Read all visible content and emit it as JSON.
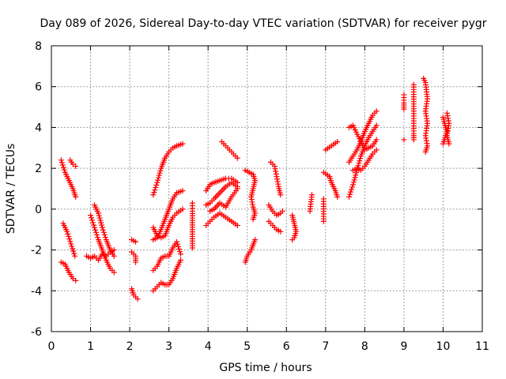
{
  "chart_data": {
    "type": "scatter",
    "title": "Day 089 of 2026, Sidereal Day-to-day VTEC variation (SDTVAR) for receiver pygr",
    "xlabel": "GPS time / hours",
    "ylabel": "SDTVAR / TECUs",
    "xlim": [
      0,
      11
    ],
    "ylim": [
      -6,
      8
    ],
    "xticks": [
      "0",
      "1",
      "2",
      "3",
      "4",
      "5",
      "6",
      "7",
      "8",
      "9",
      "10",
      "11"
    ],
    "yticks": [
      "-6",
      "-4",
      "-2",
      "0",
      "2",
      "4",
      "6",
      "8"
    ],
    "grid": true,
    "marker": "+",
    "color": "#ff0000",
    "series": [
      {
        "arcs": [
          [
            [
              0.25,
              2.4
            ],
            [
              0.35,
              1.8
            ],
            [
              0.45,
              1.4
            ],
            [
              0.55,
              1.0
            ],
            [
              0.62,
              0.6
            ]
          ],
          [
            [
              0.48,
              2.4
            ],
            [
              0.55,
              2.2
            ],
            [
              0.62,
              2.1
            ]
          ],
          [
            [
              0.3,
              -0.7
            ],
            [
              0.4,
              -1.1
            ],
            [
              0.5,
              -1.7
            ],
            [
              0.6,
              -2.3
            ]
          ],
          [
            [
              0.25,
              -2.6
            ],
            [
              0.35,
              -2.7
            ],
            [
              0.45,
              -3.1
            ],
            [
              0.55,
              -3.4
            ],
            [
              0.62,
              -3.5
            ]
          ],
          [
            [
              0.9,
              -2.3
            ],
            [
              1.0,
              -2.4
            ],
            [
              1.1,
              -2.3
            ],
            [
              1.2,
              -2.5
            ],
            [
              1.3,
              -2.2
            ],
            [
              1.4,
              -2.3
            ],
            [
              1.5,
              -2.1
            ],
            [
              1.6,
              -2.0
            ]
          ],
          [
            [
              1.0,
              -0.3
            ],
            [
              1.1,
              -0.9
            ],
            [
              1.2,
              -1.5
            ],
            [
              1.3,
              -2.0
            ],
            [
              1.4,
              -2.5
            ],
            [
              1.5,
              -2.9
            ],
            [
              1.6,
              -3.1
            ]
          ],
          [
            [
              1.1,
              0.2
            ],
            [
              1.2,
              -0.2
            ],
            [
              1.3,
              -0.9
            ],
            [
              1.4,
              -1.5
            ],
            [
              1.5,
              -2.0
            ],
            [
              1.6,
              -2.3
            ]
          ],
          [
            [
              2.05,
              -1.5
            ],
            [
              2.15,
              -1.6
            ]
          ],
          [
            [
              2.05,
              -2.1
            ],
            [
              2.15,
              -2.3
            ],
            [
              2.15,
              -2.6
            ]
          ],
          [
            [
              2.05,
              -3.9
            ],
            [
              2.1,
              -4.2
            ],
            [
              2.2,
              -4.4
            ]
          ],
          [
            [
              2.6,
              0.7
            ],
            [
              2.7,
              1.3
            ],
            [
              2.8,
              2.0
            ],
            [
              2.9,
              2.5
            ],
            [
              3.0,
              2.8
            ],
            [
              3.1,
              3.0
            ],
            [
              3.2,
              3.1
            ],
            [
              3.35,
              3.2
            ]
          ],
          [
            [
              2.6,
              -0.9
            ],
            [
              2.7,
              -1.3
            ],
            [
              2.8,
              -1.4
            ],
            [
              2.9,
              -1.3
            ],
            [
              3.0,
              -0.8
            ],
            [
              3.1,
              -0.4
            ],
            [
              3.2,
              -0.2
            ],
            [
              3.35,
              0.0
            ]
          ],
          [
            [
              2.6,
              -1.5
            ],
            [
              2.7,
              -1.4
            ],
            [
              2.8,
              -1.0
            ],
            [
              2.9,
              -0.5
            ],
            [
              3.0,
              0.0
            ],
            [
              3.1,
              0.5
            ],
            [
              3.2,
              0.8
            ],
            [
              3.35,
              0.9
            ]
          ],
          [
            [
              2.6,
              -3.0
            ],
            [
              2.7,
              -2.8
            ],
            [
              2.8,
              -2.4
            ],
            [
              2.9,
              -2.3
            ],
            [
              3.0,
              -2.3
            ],
            [
              3.1,
              -1.9
            ],
            [
              3.2,
              -1.6
            ],
            [
              3.3,
              -2.2
            ]
          ],
          [
            [
              2.6,
              -4.0
            ],
            [
              2.7,
              -3.8
            ],
            [
              2.8,
              -3.6
            ],
            [
              2.9,
              -3.7
            ],
            [
              3.0,
              -3.7
            ],
            [
              3.1,
              -3.4
            ],
            [
              3.2,
              -2.9
            ],
            [
              3.3,
              -2.5
            ]
          ],
          [
            [
              3.6,
              0.3
            ],
            [
              3.6,
              -0.1
            ],
            [
              3.6,
              -1.9
            ]
          ],
          [
            [
              3.95,
              0.9
            ],
            [
              4.05,
              1.2
            ],
            [
              4.15,
              1.3
            ],
            [
              4.3,
              1.4
            ],
            [
              4.45,
              1.5
            ],
            [
              4.6,
              1.5
            ],
            [
              4.75,
              1.3
            ]
          ],
          [
            [
              3.95,
              0.2
            ],
            [
              4.05,
              0.3
            ],
            [
              4.15,
              0.5
            ],
            [
              4.3,
              0.8
            ],
            [
              4.45,
              1.1
            ],
            [
              4.6,
              1.3
            ],
            [
              4.75,
              1.1
            ]
          ],
          [
            [
              3.95,
              -0.8
            ],
            [
              4.05,
              -0.6
            ],
            [
              4.15,
              -0.4
            ],
            [
              4.3,
              -0.2
            ],
            [
              4.45,
              -0.4
            ],
            [
              4.6,
              -0.6
            ],
            [
              4.75,
              -0.8
            ]
          ],
          [
            [
              4.05,
              -0.1
            ],
            [
              4.15,
              0.0
            ],
            [
              4.3,
              0.3
            ],
            [
              4.45,
              0.1
            ],
            [
              4.6,
              0.6
            ],
            [
              4.75,
              1.0
            ]
          ],
          [
            [
              4.35,
              3.3
            ],
            [
              4.45,
              3.1
            ],
            [
              4.55,
              2.9
            ],
            [
              4.65,
              2.7
            ],
            [
              4.75,
              2.5
            ]
          ],
          [
            [
              4.95,
              -2.6
            ],
            [
              5.0,
              -2.3
            ],
            [
              5.1,
              -2.0
            ],
            [
              5.2,
              -1.5
            ]
          ],
          [
            [
              4.95,
              1.9
            ],
            [
              5.05,
              1.8
            ],
            [
              5.15,
              1.7
            ],
            [
              5.2,
              1.4
            ],
            [
              5.15,
              1.0
            ],
            [
              5.1,
              0.6
            ],
            [
              5.15,
              0.1
            ],
            [
              5.2,
              -0.2
            ],
            [
              5.15,
              -0.5
            ]
          ],
          [
            [
              5.6,
              2.3
            ],
            [
              5.7,
              2.1
            ],
            [
              5.75,
              1.6
            ],
            [
              5.8,
              1.1
            ],
            [
              5.85,
              0.7
            ]
          ],
          [
            [
              5.55,
              0.2
            ],
            [
              5.65,
              -0.1
            ],
            [
              5.75,
              -0.3
            ],
            [
              5.85,
              -0.2
            ],
            [
              5.9,
              -0.1
            ]
          ],
          [
            [
              5.55,
              -0.6
            ],
            [
              5.65,
              -0.8
            ],
            [
              5.75,
              -1.0
            ],
            [
              5.85,
              -1.1
            ]
          ],
          [
            [
              6.15,
              -0.3
            ],
            [
              6.2,
              -0.7
            ],
            [
              6.25,
              -1.1
            ],
            [
              6.2,
              -1.4
            ],
            [
              6.15,
              -1.5
            ]
          ],
          [
            [
              6.6,
              -0.1
            ],
            [
              6.65,
              0.7
            ]
          ],
          [
            [
              6.95,
              0.5
            ],
            [
              6.95,
              -0.6
            ]
          ],
          [
            [
              6.95,
              1.8
            ],
            [
              7.1,
              1.6
            ],
            [
              7.15,
              1.3
            ],
            [
              7.25,
              0.9
            ],
            [
              7.3,
              0.6
            ]
          ],
          [
            [
              7.0,
              2.9
            ],
            [
              7.15,
              3.1
            ],
            [
              7.3,
              3.3
            ]
          ],
          [
            [
              7.6,
              0.6
            ],
            [
              7.7,
              1.2
            ],
            [
              7.8,
              1.9
            ],
            [
              7.9,
              2.6
            ],
            [
              8.0,
              3.1
            ],
            [
              8.1,
              3.5
            ],
            [
              8.2,
              3.8
            ],
            [
              8.3,
              4.1
            ]
          ],
          [
            [
              7.6,
              2.3
            ],
            [
              7.7,
              2.6
            ],
            [
              7.8,
              2.9
            ],
            [
              7.9,
              3.3
            ],
            [
              8.0,
              3.8
            ],
            [
              8.1,
              4.2
            ],
            [
              8.2,
              4.6
            ],
            [
              8.3,
              4.8
            ]
          ],
          [
            [
              7.7,
              1.9
            ],
            [
              7.8,
              2.0
            ],
            [
              7.9,
              1.9
            ],
            [
              8.0,
              2.1
            ],
            [
              8.1,
              2.4
            ],
            [
              8.2,
              2.7
            ],
            [
              8.3,
              2.9
            ]
          ],
          [
            [
              7.6,
              4.0
            ],
            [
              7.7,
              4.1
            ],
            [
              8.0,
              2.9
            ],
            [
              8.2,
              3.1
            ],
            [
              8.3,
              3.4
            ]
          ],
          [
            [
              9.0,
              5.6
            ],
            [
              9.0,
              5.2
            ],
            [
              9.0,
              4.9
            ]
          ],
          [
            [
              9.0,
              3.4
            ]
          ],
          [
            [
              9.25,
              6.1
            ],
            [
              9.25,
              5.5
            ],
            [
              9.25,
              4.8
            ],
            [
              9.25,
              4.2
            ],
            [
              9.25,
              3.7
            ],
            [
              9.25,
              3.4
            ]
          ],
          [
            [
              9.5,
              6.4
            ],
            [
              9.55,
              6.2
            ],
            [
              9.6,
              5.4
            ],
            [
              9.55,
              4.8
            ],
            [
              9.6,
              4.2
            ],
            [
              9.55,
              3.6
            ],
            [
              9.6,
              3.1
            ],
            [
              9.55,
              2.8
            ]
          ],
          [
            [
              10.0,
              4.5
            ],
            [
              10.05,
              4.1
            ],
            [
              10.1,
              3.8
            ],
            [
              10.05,
              3.5
            ],
            [
              10.0,
              3.2
            ]
          ],
          [
            [
              10.1,
              4.7
            ],
            [
              10.15,
              4.2
            ],
            [
              10.1,
              3.6
            ],
            [
              10.15,
              3.2
            ]
          ]
        ]
      }
    ]
  }
}
